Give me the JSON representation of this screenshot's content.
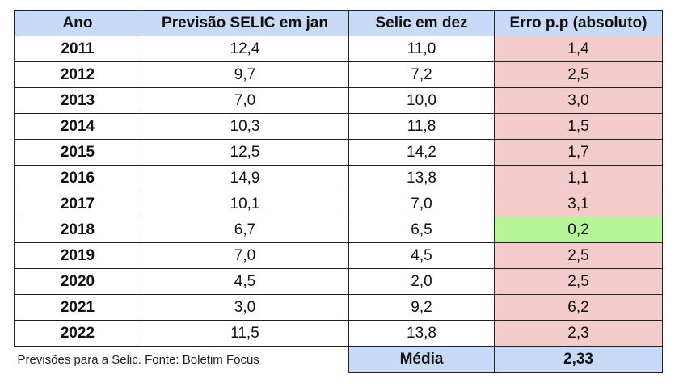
{
  "table": {
    "headers": [
      "Ano",
      "Previsão SELIC em jan",
      "Selic em dez",
      "Erro p.p (absoluto)"
    ],
    "rows": [
      {
        "year": "2011",
        "forecast": "12,4",
        "actual": "11,0",
        "error": "1,4"
      },
      {
        "year": "2012",
        "forecast": "9,7",
        "actual": "7,2",
        "error": "2,5"
      },
      {
        "year": "2013",
        "forecast": "7,0",
        "actual": "10,0",
        "error": "3,0"
      },
      {
        "year": "2014",
        "forecast": "10,3",
        "actual": "11,8",
        "error": "1,5"
      },
      {
        "year": "2015",
        "forecast": "12,5",
        "actual": "14,2",
        "error": "1,7"
      },
      {
        "year": "2016",
        "forecast": "14,9",
        "actual": "13,8",
        "error": "1,1"
      },
      {
        "year": "2017",
        "forecast": "10,1",
        "actual": "7,0",
        "error": "3,1"
      },
      {
        "year": "2018",
        "forecast": "6,7",
        "actual": "6,5",
        "error": "0,2"
      },
      {
        "year": "2019",
        "forecast": "7,0",
        "actual": "4,5",
        "error": "2,5"
      },
      {
        "year": "2020",
        "forecast": "4,5",
        "actual": "2,0",
        "error": "2,5"
      },
      {
        "year": "2021",
        "forecast": "3,0",
        "actual": "9,2",
        "error": "6,2"
      },
      {
        "year": "2022",
        "forecast": "11,5",
        "actual": "13,8",
        "error": "2,3"
      }
    ],
    "best_row_index": 7,
    "footer": {
      "note": "Previsões para a Selic. Fonte: Boletim Focus",
      "average_label": "Média",
      "average_value": "2,33"
    }
  },
  "colors": {
    "header_bg": "#c9daf8",
    "error_bg": "#f4cccc",
    "best_error_bg": "#b6f59a"
  }
}
